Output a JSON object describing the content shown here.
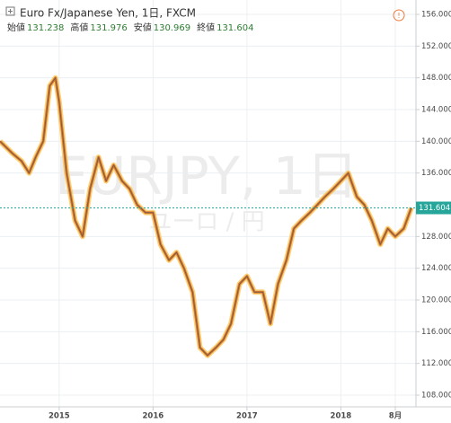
{
  "header": {
    "symbol": "Euro Fx/Japanese Yen, 1日, FXCM",
    "ohlc": [
      {
        "label": "始値",
        "value": "131.238"
      },
      {
        "label": "高値",
        "value": "131.976"
      },
      {
        "label": "安値",
        "value": "130.969"
      },
      {
        "label": "終値",
        "value": "131.604"
      }
    ]
  },
  "watermark": {
    "main": "EURJPY, 1日",
    "sub": "ユーロ / 円"
  },
  "chart_data": {
    "type": "line",
    "x": [
      2014.37,
      2014.5,
      2014.6,
      2014.68,
      2014.75,
      2014.83,
      2014.9,
      2014.96,
      2015.0,
      2015.08,
      2015.17,
      2015.25,
      2015.33,
      2015.42,
      2015.5,
      2015.58,
      2015.67,
      2015.75,
      2015.83,
      2015.92,
      2016.0,
      2016.08,
      2016.17,
      2016.25,
      2016.33,
      2016.42,
      2016.5,
      2016.58,
      2016.67,
      2016.75,
      2016.83,
      2016.92,
      2017.0,
      2017.08,
      2017.17,
      2017.25,
      2017.33,
      2017.42,
      2017.5,
      2017.58,
      2017.67,
      2017.75,
      2017.83,
      2017.92,
      2018.0,
      2018.08,
      2018.17,
      2018.25,
      2018.33,
      2018.42,
      2018.5,
      2018.58,
      2018.67,
      2018.75
    ],
    "series": [
      {
        "color": "#e07b2a",
        "values": [
          140,
          138.5,
          137.5,
          136,
          138,
          140,
          147,
          148,
          145,
          136,
          130,
          128,
          134,
          138,
          135,
          137,
          135,
          134,
          132,
          131,
          131,
          127,
          125,
          126,
          124,
          121,
          114,
          113,
          114,
          115,
          117,
          122,
          123,
          121,
          121,
          117,
          122,
          125,
          129,
          130,
          131,
          132,
          133,
          134,
          135,
          136,
          133,
          132,
          130,
          127,
          129,
          128,
          129,
          131.604
        ]
      }
    ],
    "xlim": [
      2014.37,
      2018.8
    ],
    "ylim": [
      106.53,
      157.81
    ],
    "xticks": [
      2015,
      2016,
      2017,
      2018,
      {
        "value": 2018.58,
        "label": "8月"
      }
    ],
    "yticks": [
      {
        "value": 108,
        "label": "108.000"
      },
      {
        "value": 112,
        "label": "112.000"
      },
      {
        "value": 116,
        "label": "116.000"
      },
      {
        "value": 120,
        "label": "120.000"
      },
      {
        "value": 124,
        "label": "124.000"
      },
      {
        "value": 128,
        "label": "128.000"
      },
      {
        "value": 136,
        "label": "136.000"
      },
      {
        "value": 140,
        "label": "140.000"
      },
      {
        "value": 144,
        "label": "144.000"
      },
      {
        "value": 148,
        "label": "148.000"
      },
      {
        "value": 152,
        "label": "152.000"
      },
      {
        "value": 156,
        "label": "156.000"
      }
    ],
    "grid": true
  }
}
